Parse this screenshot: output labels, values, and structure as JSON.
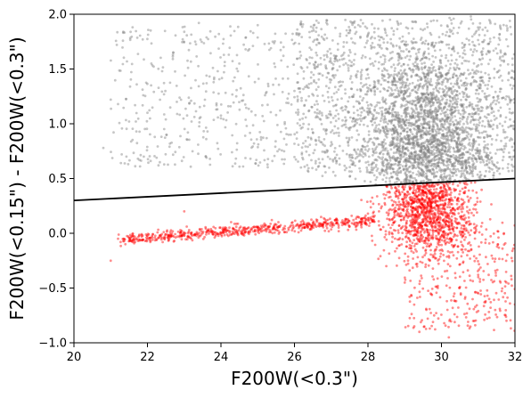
{
  "chart_data": {
    "type": "scatter",
    "xlabel": "F200W(<0.3\")",
    "ylabel": "F200W(<0.15\") - F200W(<0.3\")",
    "xlim": [
      20,
      32
    ],
    "ylim": [
      -1.0,
      2.0
    ],
    "x_ticks": [
      20,
      22,
      24,
      26,
      28,
      30,
      32
    ],
    "y_ticks": [
      -1.0,
      -0.5,
      0.0,
      0.5,
      1.0,
      1.5,
      2.0
    ],
    "x_tick_labels": [
      "20",
      "22",
      "24",
      "26",
      "28",
      "30",
      "32"
    ],
    "y_tick_labels": [
      "−1.0",
      "−0.5",
      "0.0",
      "0.5",
      "1.0",
      "1.5",
      "2.0"
    ],
    "grid": false,
    "series": [
      {
        "color": "#808080",
        "opacity": 0.45,
        "description_points": [
          [
            20.8,
            0.78
          ],
          [
            21.0,
            1.22
          ],
          [
            21.2,
            1.18
          ],
          [
            21.3,
            0.72
          ],
          [
            21.5,
            1.02
          ],
          [
            21.7,
            0.93
          ],
          [
            21.9,
            0.7
          ],
          [
            22.0,
            1.1
          ],
          [
            22.1,
            1.35
          ],
          [
            22.2,
            0.88
          ],
          [
            22.3,
            0.62
          ],
          [
            22.4,
            1.48
          ],
          [
            22.5,
            1.04
          ],
          [
            22.6,
            0.79
          ],
          [
            22.8,
            1.2
          ],
          [
            23.0,
            1.84
          ],
          [
            23.1,
            0.92
          ],
          [
            23.2,
            1.02
          ],
          [
            23.3,
            1.75
          ],
          [
            23.4,
            1.92
          ],
          [
            23.6,
            0.86
          ],
          [
            23.7,
            0.68
          ],
          [
            23.8,
            1.38
          ],
          [
            24.0,
            1.05
          ],
          [
            24.2,
            1.16
          ],
          [
            24.3,
            0.74
          ],
          [
            24.5,
            1.55
          ],
          [
            24.7,
            0.98
          ],
          [
            24.9,
            0.82
          ],
          [
            25.0,
            1.9
          ],
          [
            25.2,
            1.26
          ],
          [
            25.4,
            0.66
          ],
          [
            25.5,
            1.08
          ],
          [
            25.7,
            1.62
          ],
          [
            25.9,
            0.9
          ],
          [
            26.0,
            1.3
          ],
          [
            26.2,
            0.72
          ],
          [
            26.4,
            1.12
          ],
          [
            26.6,
            1.72
          ],
          [
            26.8,
            0.95
          ],
          [
            27.0,
            1.4
          ],
          [
            27.1,
            0.68
          ],
          [
            27.3,
            1.15
          ],
          [
            27.5,
            1.83
          ],
          [
            27.7,
            0.85
          ],
          [
            27.9,
            1.05
          ],
          [
            28.0,
            1.5
          ],
          [
            28.2,
            0.76
          ],
          [
            28.4,
            1.22
          ],
          [
            28.6,
            1.95
          ],
          [
            28.8,
            0.92
          ],
          [
            29.0,
            1.3
          ],
          [
            29.2,
            0.7
          ],
          [
            29.4,
            1.1
          ],
          [
            29.6,
            1.6
          ],
          [
            29.8,
            0.88
          ],
          [
            30.0,
            1.25
          ],
          [
            30.2,
            1.8
          ],
          [
            30.4,
            0.95
          ],
          [
            30.6,
            1.45
          ],
          [
            30.8,
            1.98
          ],
          [
            31.0,
            1.2
          ],
          [
            31.3,
            1.65
          ],
          [
            31.6,
            1.88
          ],
          [
            31.9,
            1.42
          ]
        ]
      },
      {
        "color": "#ff0000",
        "opacity": 0.45,
        "description_points": [
          [
            21.0,
            -0.25
          ],
          [
            21.2,
            -0.05
          ],
          [
            21.4,
            -0.1
          ],
          [
            21.6,
            -0.08
          ],
          [
            21.8,
            -0.06
          ],
          [
            22.0,
            -0.05
          ],
          [
            22.3,
            -0.04
          ],
          [
            22.6,
            -0.03
          ],
          [
            22.9,
            -0.02
          ],
          [
            23.0,
            0.2
          ],
          [
            23.2,
            -0.01
          ],
          [
            23.5,
            0.0
          ],
          [
            23.8,
            0.01
          ],
          [
            24.1,
            0.02
          ],
          [
            24.4,
            0.03
          ],
          [
            24.7,
            0.04
          ],
          [
            25.0,
            0.05
          ],
          [
            25.3,
            0.06
          ],
          [
            25.6,
            0.06
          ],
          [
            25.9,
            0.07
          ],
          [
            26.2,
            0.08
          ],
          [
            26.5,
            0.09
          ],
          [
            26.8,
            0.1
          ],
          [
            27.1,
            0.12
          ],
          [
            27.4,
            0.13
          ],
          [
            27.7,
            0.15
          ],
          [
            28.0,
            0.18
          ],
          [
            28.3,
            0.2
          ],
          [
            28.6,
            0.22
          ],
          [
            28.9,
            0.26
          ],
          [
            29.2,
            0.3
          ],
          [
            29.5,
            0.35
          ],
          [
            29.8,
            0.4
          ],
          [
            30.1,
            0.3
          ],
          [
            30.4,
            0.1
          ],
          [
            30.7,
            -0.2
          ],
          [
            31.0,
            -0.4
          ],
          [
            31.3,
            -0.6
          ],
          [
            31.7,
            0.0
          ],
          [
            32.0,
            -0.65
          ],
          [
            29.4,
            -0.9
          ],
          [
            29.8,
            -0.75
          ],
          [
            30.2,
            -0.95
          ],
          [
            29.0,
            -0.45
          ],
          [
            28.5,
            -0.3
          ]
        ]
      }
    ],
    "lines": [
      {
        "color": "#000000",
        "x": [
          20,
          32
        ],
        "y": [
          0.3,
          0.5
        ]
      }
    ]
  }
}
